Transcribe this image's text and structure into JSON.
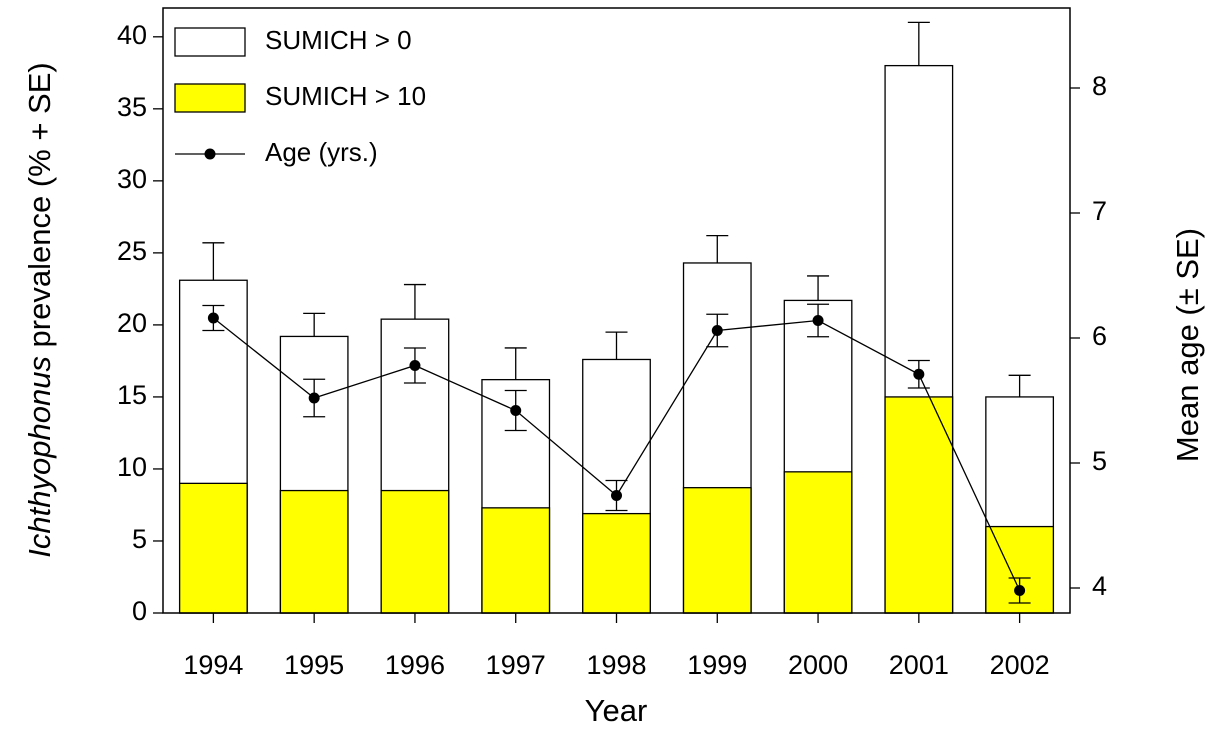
{
  "chart_data": {
    "type": "bar",
    "x_label": "Year",
    "y_label": {
      "italic": "Ichthyophonus",
      "rest": " prevalence (% + SE)"
    },
    "y2_label": "Mean age (± SE)",
    "categories": [
      "1994",
      "1995",
      "1996",
      "1997",
      "1998",
      "1999",
      "2000",
      "2001",
      "2002"
    ],
    "series": [
      {
        "name": "SUMICH > 0",
        "color": "#ffffff",
        "values": [
          23.1,
          19.2,
          20.4,
          16.2,
          17.6,
          24.3,
          21.7,
          38.0,
          15.0
        ],
        "errors": [
          2.6,
          1.6,
          2.4,
          2.2,
          1.9,
          1.9,
          1.7,
          3.0,
          1.5
        ]
      },
      {
        "name": "SUMICH > 10",
        "color": "#ffff00",
        "values": [
          9.0,
          8.5,
          8.5,
          7.3,
          6.9,
          8.7,
          9.8,
          15.0,
          6.0
        ]
      },
      {
        "name": "Age (yrs.)",
        "type": "line",
        "axis": "y2",
        "color": "#000000",
        "values": [
          6.16,
          5.52,
          5.78,
          5.42,
          4.74,
          6.06,
          6.14,
          5.71,
          3.98
        ],
        "errors": [
          0.1,
          0.15,
          0.14,
          0.16,
          0.12,
          0.13,
          0.13,
          0.11,
          0.1
        ]
      }
    ],
    "ylim": [
      0,
      42
    ],
    "yticks": [
      0,
      5,
      10,
      15,
      20,
      25,
      30,
      35,
      40
    ],
    "y2lim": [
      3.8,
      8.64
    ],
    "y2ticks": [
      4,
      5,
      6,
      7,
      8
    ],
    "legend": "upper left"
  }
}
